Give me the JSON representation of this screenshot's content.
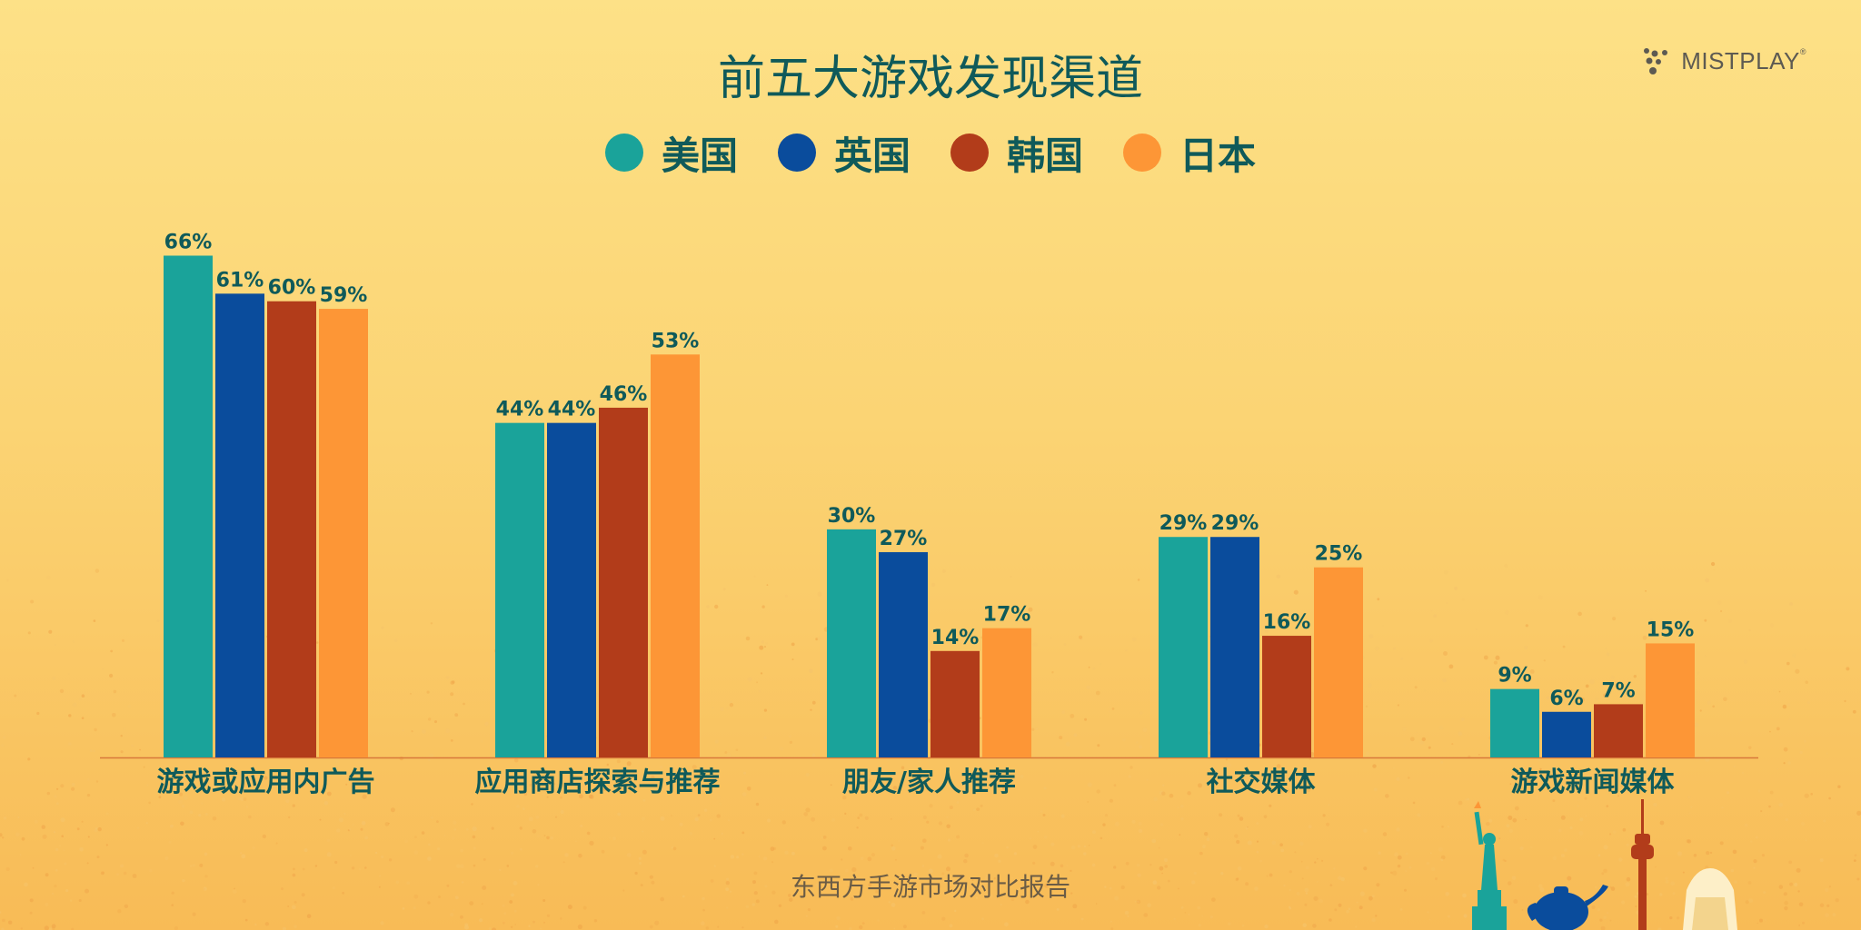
{
  "title": "前五大游戏发现渠道",
  "footer": "东西方手游市场对比报告",
  "logo": {
    "name": "MISTPLAY",
    "mark": "®"
  },
  "colors": {
    "us": "#1aa39a",
    "uk": "#0a4c9c",
    "kr": "#b23c1a",
    "jp": "#fd9636",
    "text": "#0f5a5a"
  },
  "chart_data": {
    "type": "bar",
    "title": "前五大游戏发现渠道",
    "categories": [
      "游戏或应用内广告",
      "应用商店探索与推荐",
      "朋友/家人推荐",
      "社交媒体",
      "游戏新闻媒体"
    ],
    "series": [
      {
        "name": "美国",
        "color": "#1aa39a",
        "values": [
          66,
          44,
          30,
          29,
          9
        ],
        "labels": [
          "66%",
          "44%",
          "30%",
          "29%",
          "9%"
        ]
      },
      {
        "name": "英国",
        "color": "#0a4c9c",
        "values": [
          61,
          44,
          27,
          29,
          6
        ],
        "labels": [
          "61%",
          "44%",
          "27%",
          "29%",
          "6%"
        ]
      },
      {
        "name": "韩国",
        "color": "#b23c1a",
        "values": [
          60,
          46,
          14,
          16,
          7
        ],
        "labels": [
          "60%",
          "46%",
          "14%",
          "16%",
          "7%"
        ]
      },
      {
        "name": "日本",
        "color": "#fd9636",
        "values": [
          59,
          53,
          17,
          25,
          15
        ],
        "labels": [
          "59%",
          "53%",
          "17%",
          "25%",
          "15%"
        ]
      }
    ],
    "ylim": [
      0,
      70
    ],
    "unit": "%",
    "grid": false,
    "legend_position": "top"
  }
}
